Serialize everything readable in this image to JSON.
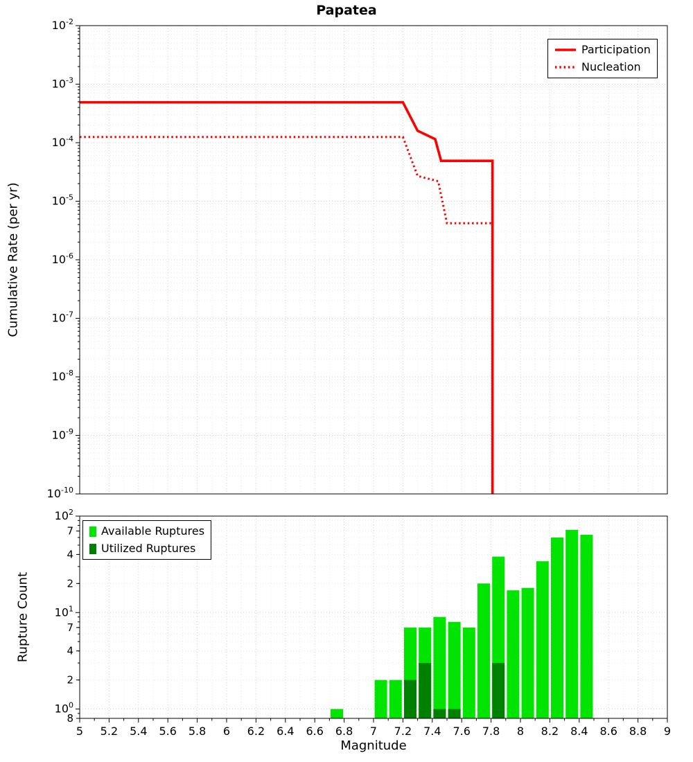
{
  "title": "Papatea",
  "chart_data": [
    {
      "type": "line",
      "title": "Papatea",
      "xlabel": "Magnitude",
      "ylabel": "Cumulative Rate (per yr)",
      "xlim": [
        5,
        9
      ],
      "ylim": [
        1e-10,
        0.01
      ],
      "y_scale": "log",
      "grid": true,
      "legend_position": "top-right",
      "y_tick_exponents": [
        -2,
        -3,
        -4,
        -5,
        -6,
        -7,
        -8,
        -9,
        -10
      ],
      "series": [
        {
          "name": "Participation",
          "color": "#ff0000",
          "line_style": "solid",
          "points": [
            [
              5.0,
              0.00049
            ],
            [
              7.2,
              0.00049
            ],
            [
              7.3,
              0.00016
            ],
            [
              7.42,
              0.000115
            ],
            [
              7.46,
              4.9e-05
            ],
            [
              7.81,
              4.9e-05
            ],
            [
              7.81,
              1e-10
            ]
          ]
        },
        {
          "name": "Nucleation",
          "color": "#ff0000",
          "line_style": "dotted",
          "points": [
            [
              5.0,
              0.000125
            ],
            [
              7.2,
              0.000125
            ],
            [
              7.3,
              2.7e-05
            ],
            [
              7.44,
              2.2e-05
            ],
            [
              7.5,
              4.2e-06
            ],
            [
              7.81,
              4.2e-06
            ],
            [
              7.81,
              1e-10
            ]
          ]
        }
      ]
    },
    {
      "type": "bar",
      "xlabel": "Magnitude",
      "ylabel": "Rupture Count",
      "xlim": [
        5,
        9
      ],
      "ylim": [
        0.8,
        100
      ],
      "y_scale": "log",
      "grid": true,
      "legend_position": "top-left",
      "bar_width": 0.085,
      "x_tick_values": [
        5,
        5.2,
        5.4,
        5.6,
        5.8,
        6,
        6.2,
        6.4,
        6.6,
        6.8,
        7,
        7.2,
        7.4,
        7.6,
        7.8,
        8,
        8.2,
        8.4,
        8.6,
        8.8,
        9
      ],
      "x_tick_labels": [
        "5",
        "5.2",
        "5.4",
        "5.6",
        "5.8",
        "6",
        "6.2",
        "6.4",
        "6.6",
        "6.8",
        "7",
        "7.2",
        "7.4",
        "7.6",
        "7.8",
        "8",
        "8.2",
        "8.4",
        "8.6",
        "8.8",
        "9"
      ],
      "y_ticks": [
        {
          "value": 100,
          "label": "10",
          "exponent": "2"
        },
        {
          "value": 70,
          "label": "7"
        },
        {
          "value": 40,
          "label": "4"
        },
        {
          "value": 20,
          "label": "2"
        },
        {
          "value": 10,
          "label": "10",
          "exponent": "1"
        },
        {
          "value": 7,
          "label": "7"
        },
        {
          "value": 4,
          "label": "4"
        },
        {
          "value": 2,
          "label": "2"
        },
        {
          "value": 1,
          "label": "10",
          "exponent": "0"
        },
        {
          "value": 0.8,
          "label": "8"
        }
      ],
      "categories": [
        6.75,
        7.05,
        7.15,
        7.25,
        7.35,
        7.45,
        7.55,
        7.65,
        7.75,
        7.85,
        7.95,
        8.05,
        8.15,
        8.25,
        8.35,
        8.45
      ],
      "series": [
        {
          "name": "Available Ruptures",
          "color": "#00e400",
          "values": [
            1,
            2,
            2,
            7,
            7,
            9,
            8,
            7,
            20,
            38,
            17,
            18,
            34,
            60,
            72,
            64
          ]
        },
        {
          "name": "Utilized Ruptures",
          "color": "#008000",
          "values": [
            0,
            0,
            0,
            2,
            3,
            1,
            1,
            0,
            0,
            3,
            0,
            0,
            0,
            0,
            0,
            0
          ]
        }
      ]
    }
  ]
}
